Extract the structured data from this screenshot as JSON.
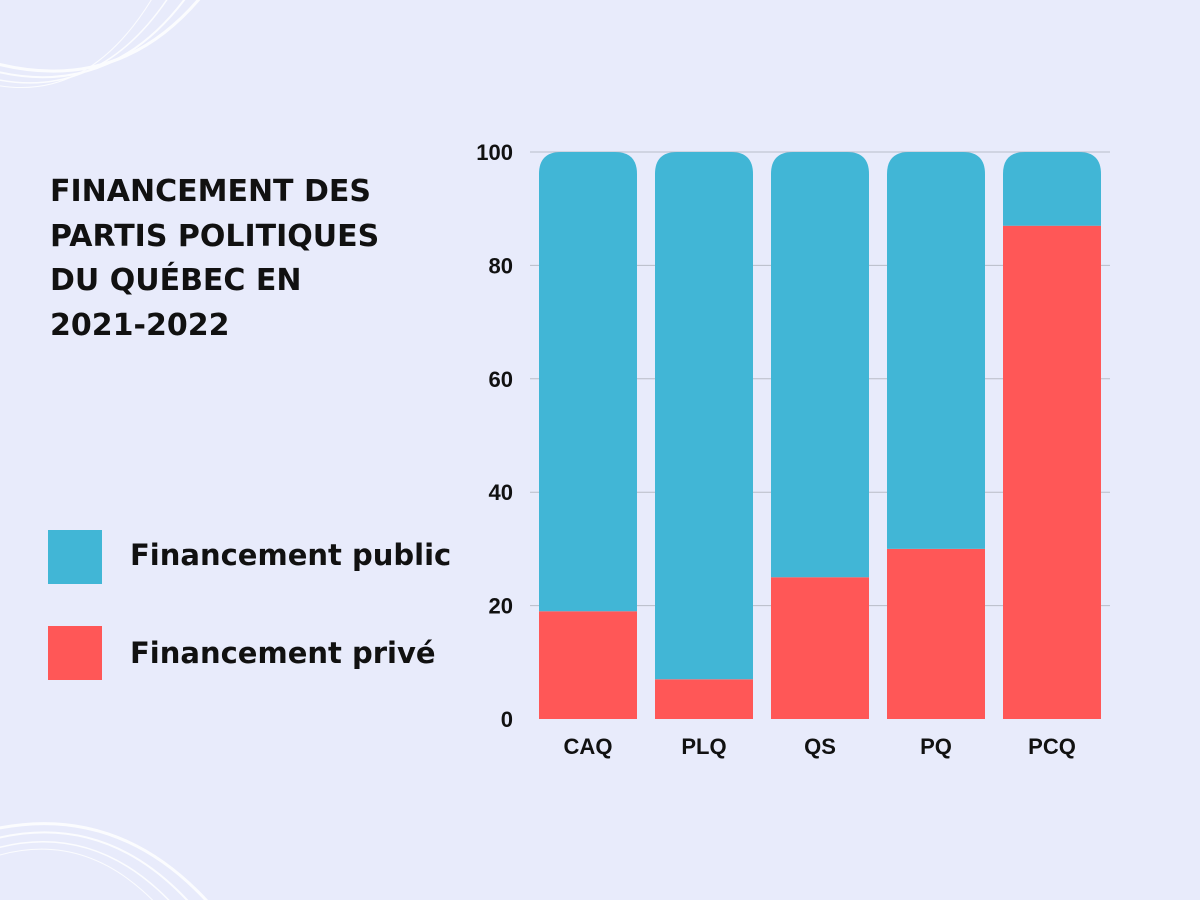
{
  "title": "FINANCEMENT DES\nPARTIS POLITIQUES\nDU QUÉBEC EN\n2021-2022",
  "colors": {
    "background": "#E8EBFB",
    "public": "#41B6D6",
    "private": "#FF5757",
    "grid": "#B9BCC8",
    "text": "#111111"
  },
  "chart_data": {
    "type": "bar",
    "stacked": true,
    "title": "FINANCEMENT DES PARTIS POLITIQUES DU QUÉBEC EN 2021-2022",
    "categories": [
      "CAQ",
      "PLQ",
      "QS",
      "PQ",
      "PCQ"
    ],
    "series": [
      {
        "name": "Financement privé",
        "color": "#FF5757",
        "values": [
          19,
          7,
          25,
          30,
          87
        ]
      },
      {
        "name": "Financement public",
        "color": "#41B6D6",
        "values": [
          81,
          93,
          75,
          70,
          13
        ]
      }
    ],
    "ylim": [
      0,
      100
    ],
    "yticks": [
      "0",
      "20",
      "40",
      "60",
      "80",
      "100"
    ],
    "grid": true,
    "legend": [
      {
        "label": "Financement public",
        "color": "#41B6D6"
      },
      {
        "label": "Financement privé",
        "color": "#FF5757"
      }
    ],
    "legend_position": "left"
  }
}
